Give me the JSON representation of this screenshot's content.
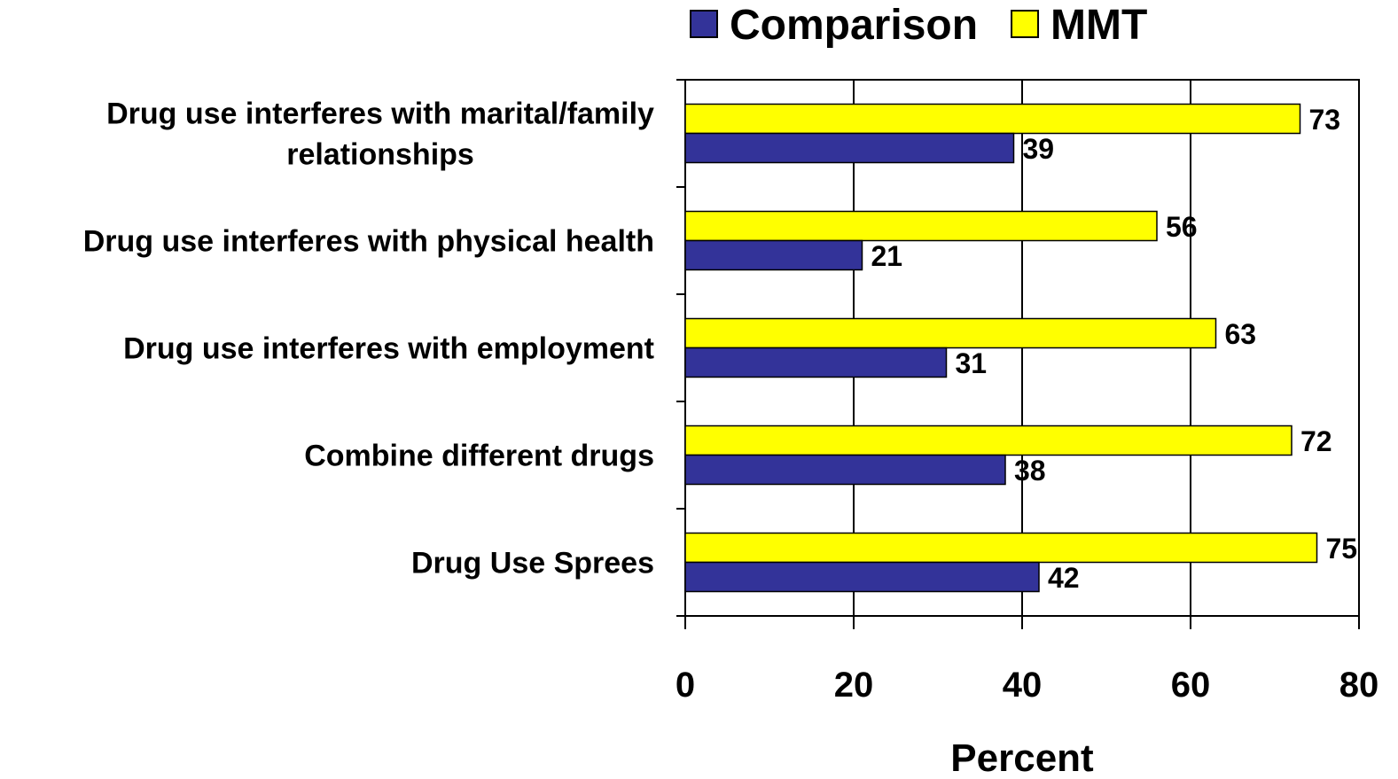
{
  "chart_data": {
    "type": "bar",
    "orientation": "horizontal",
    "categories": [
      [
        "Drug use interferes with marital/family",
        "relationships"
      ],
      [
        "Drug use interferes with physical health"
      ],
      [
        "Drug use interferes with employment"
      ],
      [
        "Combine different drugs"
      ],
      [
        "Drug Use Sprees"
      ]
    ],
    "series": [
      {
        "name": "MMT",
        "color": "#ffff00",
        "values": [
          73,
          56,
          63,
          72,
          75
        ]
      },
      {
        "name": "Comparison",
        "color": "#333399",
        "values": [
          39,
          21,
          31,
          38,
          42
        ]
      }
    ],
    "legend": {
      "placement": "top",
      "order": [
        "Comparison",
        "MMT"
      ]
    },
    "xlabel": "Percent",
    "xlim": [
      0,
      80
    ],
    "xticks": [
      "0",
      "20",
      "40",
      "60",
      "80"
    ],
    "grid": "vertical",
    "data_labels": true
  }
}
